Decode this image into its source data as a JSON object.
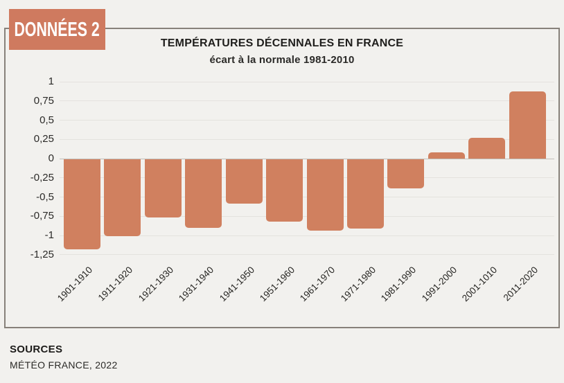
{
  "badge": {
    "label": "DONNÉES 2"
  },
  "chart": {
    "title": "TEMPÉRATURES DÉCENNALES EN FRANCE",
    "subtitle": "écart à la normale 1981-2010"
  },
  "chart_data": {
    "type": "bar",
    "title": "TEMPÉRATURES DÉCENNALES EN FRANCE",
    "subtitle": "écart à la normale 1981-2010",
    "categories": [
      "1901-1910",
      "1911-1920",
      "1921-1930",
      "1931-1940",
      "1941-1950",
      "1951-1960",
      "1961-1970",
      "1971-1980",
      "1981-1990",
      "1991-2000",
      "2001-1010",
      "2011-2020"
    ],
    "values": [
      -1.17,
      -1.0,
      -0.76,
      -0.89,
      -0.58,
      -0.81,
      -0.93,
      -0.9,
      -0.38,
      0.08,
      0.27,
      0.87
    ],
    "xlabel": "",
    "ylabel": "",
    "ylim": [
      -1.25,
      1
    ],
    "ytick_step": 0.25,
    "ytick_labels": [
      "1",
      "0,75",
      "0,5",
      "0,25",
      "0",
      "-0,25",
      "-0,5",
      "-0,75",
      "-1",
      "-1,25"
    ],
    "grid": true,
    "legend": false,
    "x_label_rotation": -45,
    "bar_color": "#d0805f",
    "decimal_separator": ","
  },
  "footer": {
    "heading": "SOURCES",
    "source": "MÉTÉO FRANCE, 2022"
  },
  "colors": {
    "background": "#f2f1ee",
    "accent": "#cf7a5f",
    "card_border": "#87817a",
    "grid": "#e4e2de",
    "zero_line": "#c2bfba",
    "text": "#1f1e1c"
  }
}
